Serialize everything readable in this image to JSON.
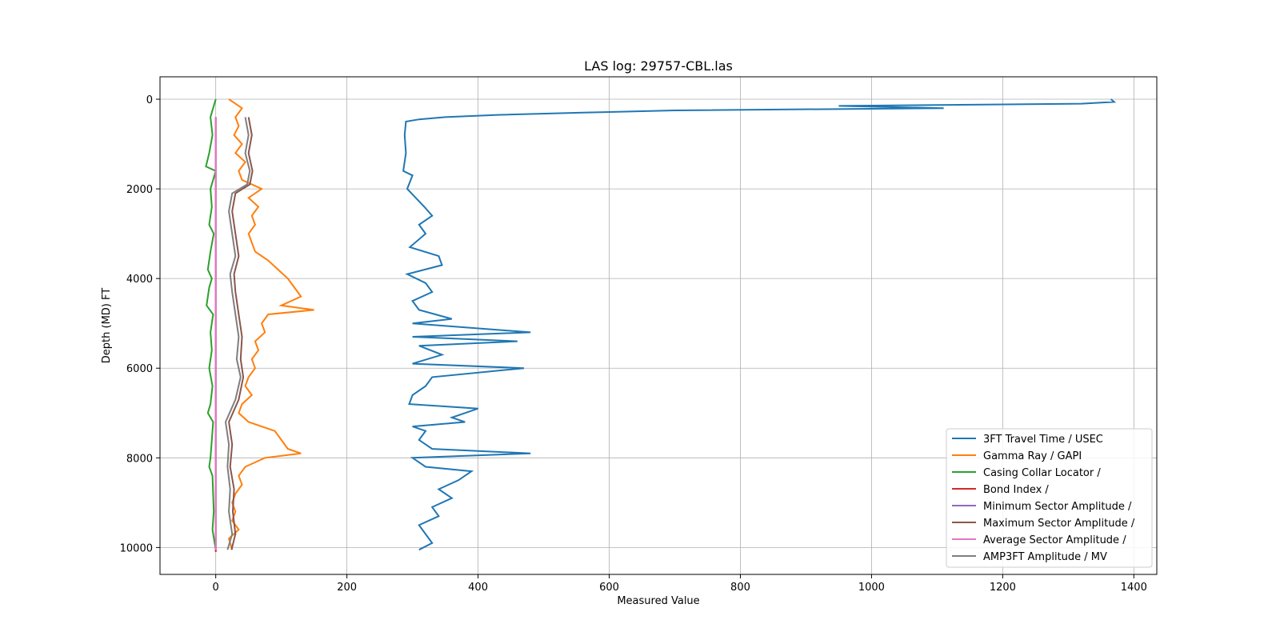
{
  "chart_data": {
    "type": "line",
    "title": "LAS log: 29757-CBL.las",
    "xlabel": "Measured Value",
    "ylabel": "Depth (MD) FT",
    "xlim": [
      -85,
      1435
    ],
    "ylim": [
      10600,
      -500
    ],
    "y_inverted": true,
    "grid": true,
    "xticks": [
      0,
      200,
      400,
      600,
      800,
      1000,
      1200,
      1400
    ],
    "yticks": [
      0,
      2000,
      4000,
      6000,
      8000,
      10000
    ],
    "legend_position": "lower right",
    "series": [
      {
        "name": "3FT Travel Time / USEC",
        "color": "#1f77b4",
        "depth": [
          0,
          60,
          100,
          150,
          200,
          250,
          300,
          350,
          400,
          450,
          500,
          800,
          1200,
          1600,
          1700,
          2000,
          2200,
          2400,
          2600,
          2800,
          3000,
          3300,
          3500,
          3700,
          3900,
          4100,
          4300,
          4500,
          4700,
          4900,
          5000,
          5200,
          5300,
          5400,
          5500,
          5700,
          5900,
          6000,
          6200,
          6400,
          6600,
          6800,
          6900,
          7000,
          7100,
          7200,
          7300,
          7400,
          7600,
          7800,
          7900,
          8000,
          8200,
          8300,
          8500,
          8700,
          8900,
          9100,
          9300,
          9500,
          9700,
          9900,
          10050
        ],
        "values": [
          1365,
          1370,
          1320,
          950,
          1110,
          700,
          560,
          430,
          350,
          310,
          290,
          288,
          290,
          286,
          300,
          292,
          305,
          318,
          330,
          310,
          320,
          296,
          340,
          345,
          292,
          320,
          330,
          300,
          310,
          360,
          300,
          480,
          300,
          460,
          310,
          345,
          300,
          470,
          330,
          320,
          300,
          295,
          400,
          380,
          360,
          380,
          300,
          320,
          310,
          330,
          480,
          300,
          320,
          390,
          370,
          340,
          360,
          330,
          340,
          310,
          320,
          330,
          310
        ]
      },
      {
        "name": "Gamma Ray / GAPI",
        "color": "#ff7f0e",
        "depth": [
          0,
          200,
          400,
          600,
          800,
          1000,
          1200,
          1400,
          1600,
          1800,
          2000,
          2200,
          2400,
          2600,
          2800,
          3000,
          3200,
          3400,
          3600,
          3800,
          4000,
          4200,
          4400,
          4600,
          4700,
          4800,
          5000,
          5200,
          5400,
          5600,
          5800,
          6000,
          6200,
          6400,
          6600,
          6800,
          7000,
          7200,
          7400,
          7600,
          7800,
          7900,
          8000,
          8200,
          8400,
          8600,
          8800,
          9000,
          9200,
          9400,
          9600,
          9800,
          10050
        ],
        "values": [
          20,
          40,
          30,
          35,
          28,
          40,
          30,
          45,
          35,
          40,
          70,
          50,
          65,
          55,
          60,
          50,
          55,
          60,
          80,
          95,
          110,
          120,
          130,
          100,
          150,
          80,
          70,
          75,
          60,
          65,
          55,
          60,
          50,
          45,
          55,
          40,
          35,
          50,
          90,
          100,
          110,
          130,
          75,
          45,
          35,
          40,
          30,
          25,
          30,
          25,
          35,
          20,
          25
        ]
      },
      {
        "name": "Casing Collar Locator /",
        "color": "#2ca02c",
        "depth": [
          0,
          400,
          800,
          1200,
          1500,
          1600,
          2000,
          2400,
          2800,
          3000,
          3400,
          3800,
          4000,
          4200,
          4600,
          4800,
          5200,
          5600,
          6000,
          6400,
          6800,
          7000,
          7200,
          7600,
          8000,
          8200,
          8400,
          8800,
          9200,
          9600,
          10050
        ],
        "values": [
          0,
          -8,
          -5,
          -10,
          -15,
          0,
          -8,
          -6,
          -10,
          -3,
          -8,
          -12,
          -6,
          -10,
          -14,
          -4,
          -8,
          -6,
          -10,
          -5,
          -8,
          -12,
          -4,
          -6,
          -8,
          -10,
          -5,
          -4,
          -3,
          -5,
          0
        ]
      },
      {
        "name": "Bond Index /",
        "color": "#d62728",
        "depth": [
          400,
          10100
        ],
        "values": [
          0,
          0
        ]
      },
      {
        "name": "Minimum Sector Amplitude /",
        "color": "#9467bd",
        "depth": [
          400,
          10050
        ],
        "values": [
          0,
          0
        ]
      },
      {
        "name": "Maximum Sector Amplitude /",
        "color": "#8c564b",
        "depth": [
          400,
          800,
          1200,
          1600,
          1900,
          2100,
          2500,
          3000,
          3500,
          3900,
          4300,
          4800,
          5300,
          5800,
          6200,
          6700,
          7200,
          7700,
          8200,
          8700,
          9200,
          9700,
          10050
        ],
        "values": [
          50,
          55,
          50,
          56,
          52,
          30,
          25,
          30,
          35,
          28,
          30,
          35,
          40,
          38,
          42,
          35,
          20,
          25,
          22,
          28,
          26,
          30,
          24
        ]
      },
      {
        "name": "Average Sector Amplitude /",
        "color": "#e377c2",
        "depth": [
          400,
          10050
        ],
        "values": [
          0,
          0
        ]
      },
      {
        "name": "AMP3FT Amplitude / MV",
        "color": "#7f7f7f",
        "depth": [
          400,
          800,
          1200,
          1600,
          1900,
          2100,
          2500,
          3000,
          3500,
          3900,
          4300,
          4800,
          5300,
          5800,
          6200,
          6700,
          7200,
          7700,
          8200,
          8700,
          9200,
          9700,
          10050
        ],
        "values": [
          45,
          50,
          45,
          52,
          48,
          25,
          20,
          25,
          30,
          22,
          25,
          30,
          35,
          32,
          38,
          30,
          15,
          20,
          18,
          22,
          20,
          25,
          18
        ]
      }
    ]
  }
}
